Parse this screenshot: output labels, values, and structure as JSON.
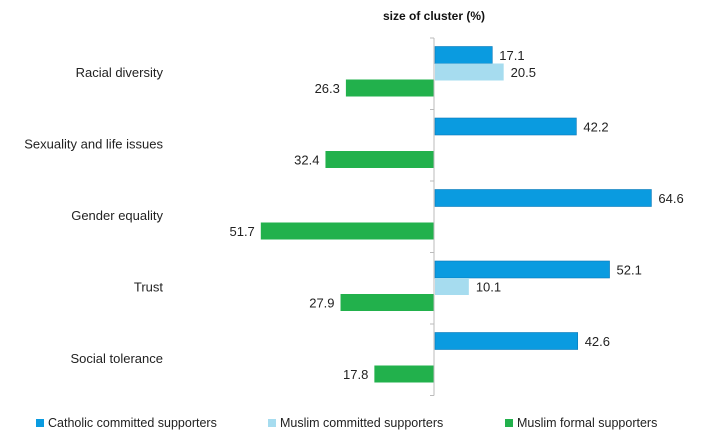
{
  "chart_data": {
    "type": "bar",
    "orientation": "horizontal",
    "title": "size of cluster (%)",
    "categories": [
      "Racial diversity",
      "Sexuality and life issues",
      "Gender equality",
      "Trust",
      "Social tolerance"
    ],
    "series": [
      {
        "name": "Catholic committed supporters",
        "color": "#0a9be0",
        "values": [
          17.1,
          42.2,
          64.6,
          52.1,
          42.6
        ]
      },
      {
        "name": "Muslim committed supporters",
        "color": "#a6dcef",
        "values": [
          20.5,
          null,
          null,
          10.1,
          null
        ]
      },
      {
        "name": "Muslim formal supporters",
        "color": "#22b14c",
        "values": [
          26.3,
          32.4,
          51.7,
          27.9,
          17.8
        ]
      }
    ],
    "xlim": [
      -52,
      75
    ],
    "grid": false,
    "legend_position": "bottom"
  }
}
